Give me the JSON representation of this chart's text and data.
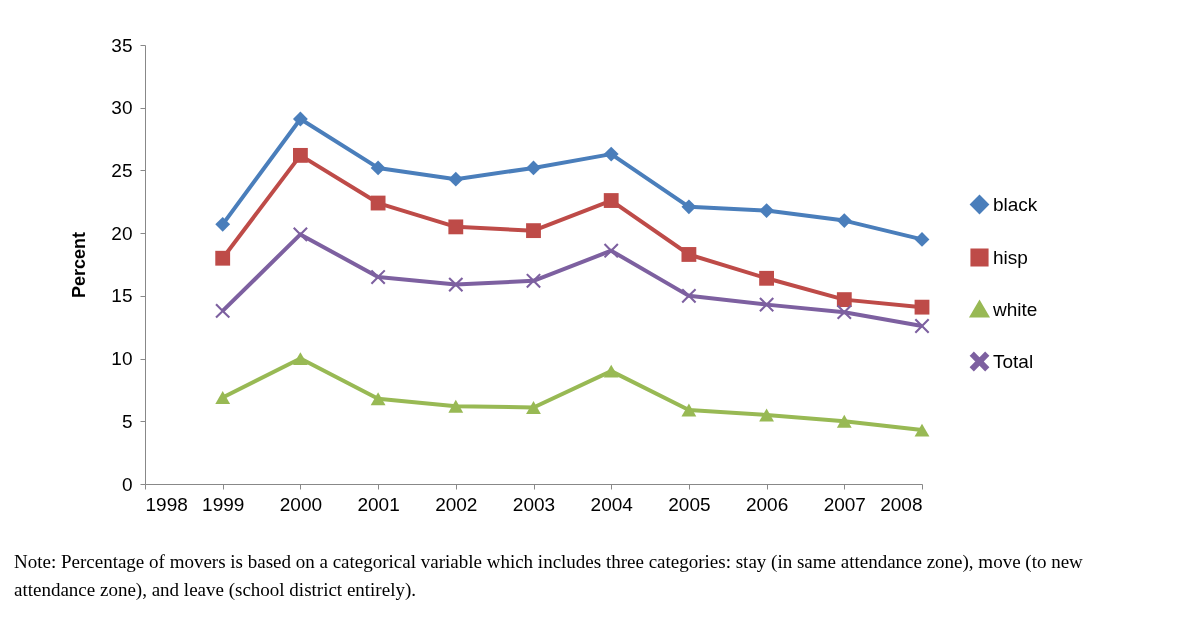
{
  "chart_data": {
    "type": "line",
    "ylabel": "Percent",
    "x": [
      1999,
      2000,
      2001,
      2002,
      2003,
      2004,
      2005,
      2006,
      2007,
      2008
    ],
    "xlim": [
      1998,
      2008
    ],
    "xticks": [
      1998,
      1999,
      2000,
      2001,
      2002,
      2003,
      2004,
      2005,
      2006,
      2007,
      2008
    ],
    "ylim": [
      0,
      35
    ],
    "yticks": [
      0,
      5,
      10,
      15,
      20,
      25,
      30,
      35
    ],
    "grid": false,
    "legend": "right",
    "series": [
      {
        "name": "black",
        "color": "#4a7ebb",
        "marker": "diamond",
        "values": [
          20.7,
          29.1,
          25.2,
          24.3,
          25.2,
          26.3,
          22.1,
          21.8,
          21.0,
          19.5
        ]
      },
      {
        "name": "hisp",
        "color": "#be4b48",
        "marker": "square",
        "values": [
          18.0,
          26.2,
          22.4,
          20.5,
          20.2,
          22.6,
          18.3,
          16.4,
          14.7,
          14.1
        ]
      },
      {
        "name": "white",
        "color": "#98b954",
        "marker": "triangle",
        "values": [
          6.9,
          10.0,
          6.8,
          6.2,
          6.1,
          9.0,
          5.9,
          5.5,
          5.0,
          4.3
        ]
      },
      {
        "name": "Total",
        "color": "#7d60a0",
        "marker": "cross",
        "values": [
          13.8,
          19.9,
          16.5,
          15.9,
          16.2,
          18.6,
          15.0,
          14.3,
          13.7,
          12.6
        ]
      }
    ],
    "annotations": [
      "Note: Percentage of movers is based on a categorical variable which includes three categories: stay (in same attendance zone), move (to new attendance zone), and leave (school district entirely)."
    ]
  }
}
